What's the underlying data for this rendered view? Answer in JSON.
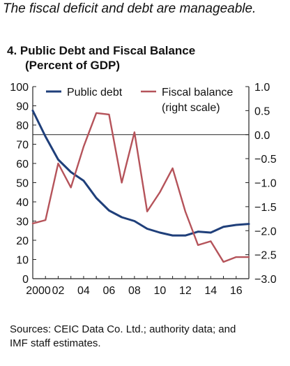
{
  "headline": "The fiscal deficit and debt are manageable.",
  "chart_title": "4. Public Debt and Fiscal Balance",
  "chart_subtitle": "(Percent of GDP)",
  "source": [
    "Sources: CEIC Data Co. Ltd.; authority data; and",
    "IMF staff estimates."
  ],
  "colors": {
    "public_debt": "#1f3f7a",
    "fiscal_balance": "#b5535a",
    "axis": "#222222"
  },
  "chart_data": {
    "type": "line",
    "title": "4. Public Debt and Fiscal Balance",
    "subtitle": "(Percent of GDP)",
    "x": [
      2000,
      2001,
      2002,
      2003,
      2004,
      2005,
      2006,
      2007,
      2008,
      2009,
      2010,
      2011,
      2012,
      2013,
      2014,
      2015,
      2016,
      2017
    ],
    "x_tick_labels": [
      "2000",
      "02",
      "04",
      "06",
      "08",
      "10",
      "12",
      "14",
      "16"
    ],
    "x_tick_years": [
      2000,
      2002,
      2004,
      2006,
      2008,
      2010,
      2012,
      2014,
      2016
    ],
    "xlim": [
      2000,
      2017
    ],
    "ylim_left": [
      0,
      100
    ],
    "yticks_left": [
      "100",
      "90",
      "80",
      "70",
      "60",
      "50",
      "40",
      "30",
      "20",
      "10",
      "0"
    ],
    "ylim_right": [
      -3.0,
      1.0
    ],
    "yticks_right": [
      "1.0",
      "0.5",
      "0.0",
      "−0.5",
      "−1.0",
      "−1.5",
      "−2.0",
      "−2.5",
      "−3.0"
    ],
    "zero_line_right": 0.0,
    "legend_position": "top",
    "series": [
      {
        "name": "Public debt",
        "axis": "left",
        "values": [
          87.5,
          74,
          62,
          55.5,
          51,
          42,
          35.5,
          32,
          30,
          26,
          24,
          22.5,
          22.5,
          24.5,
          24,
          27,
          28,
          28.5
        ]
      },
      {
        "name": "Fiscal balance",
        "name_line2": "(right scale)",
        "axis": "right",
        "values": [
          -1.85,
          -1.78,
          -0.6,
          -1.1,
          -0.25,
          0.45,
          0.42,
          -1.0,
          0.05,
          -1.6,
          -1.2,
          -0.7,
          -1.6,
          -2.3,
          -2.22,
          -2.65,
          -2.55,
          -2.55
        ]
      }
    ]
  }
}
